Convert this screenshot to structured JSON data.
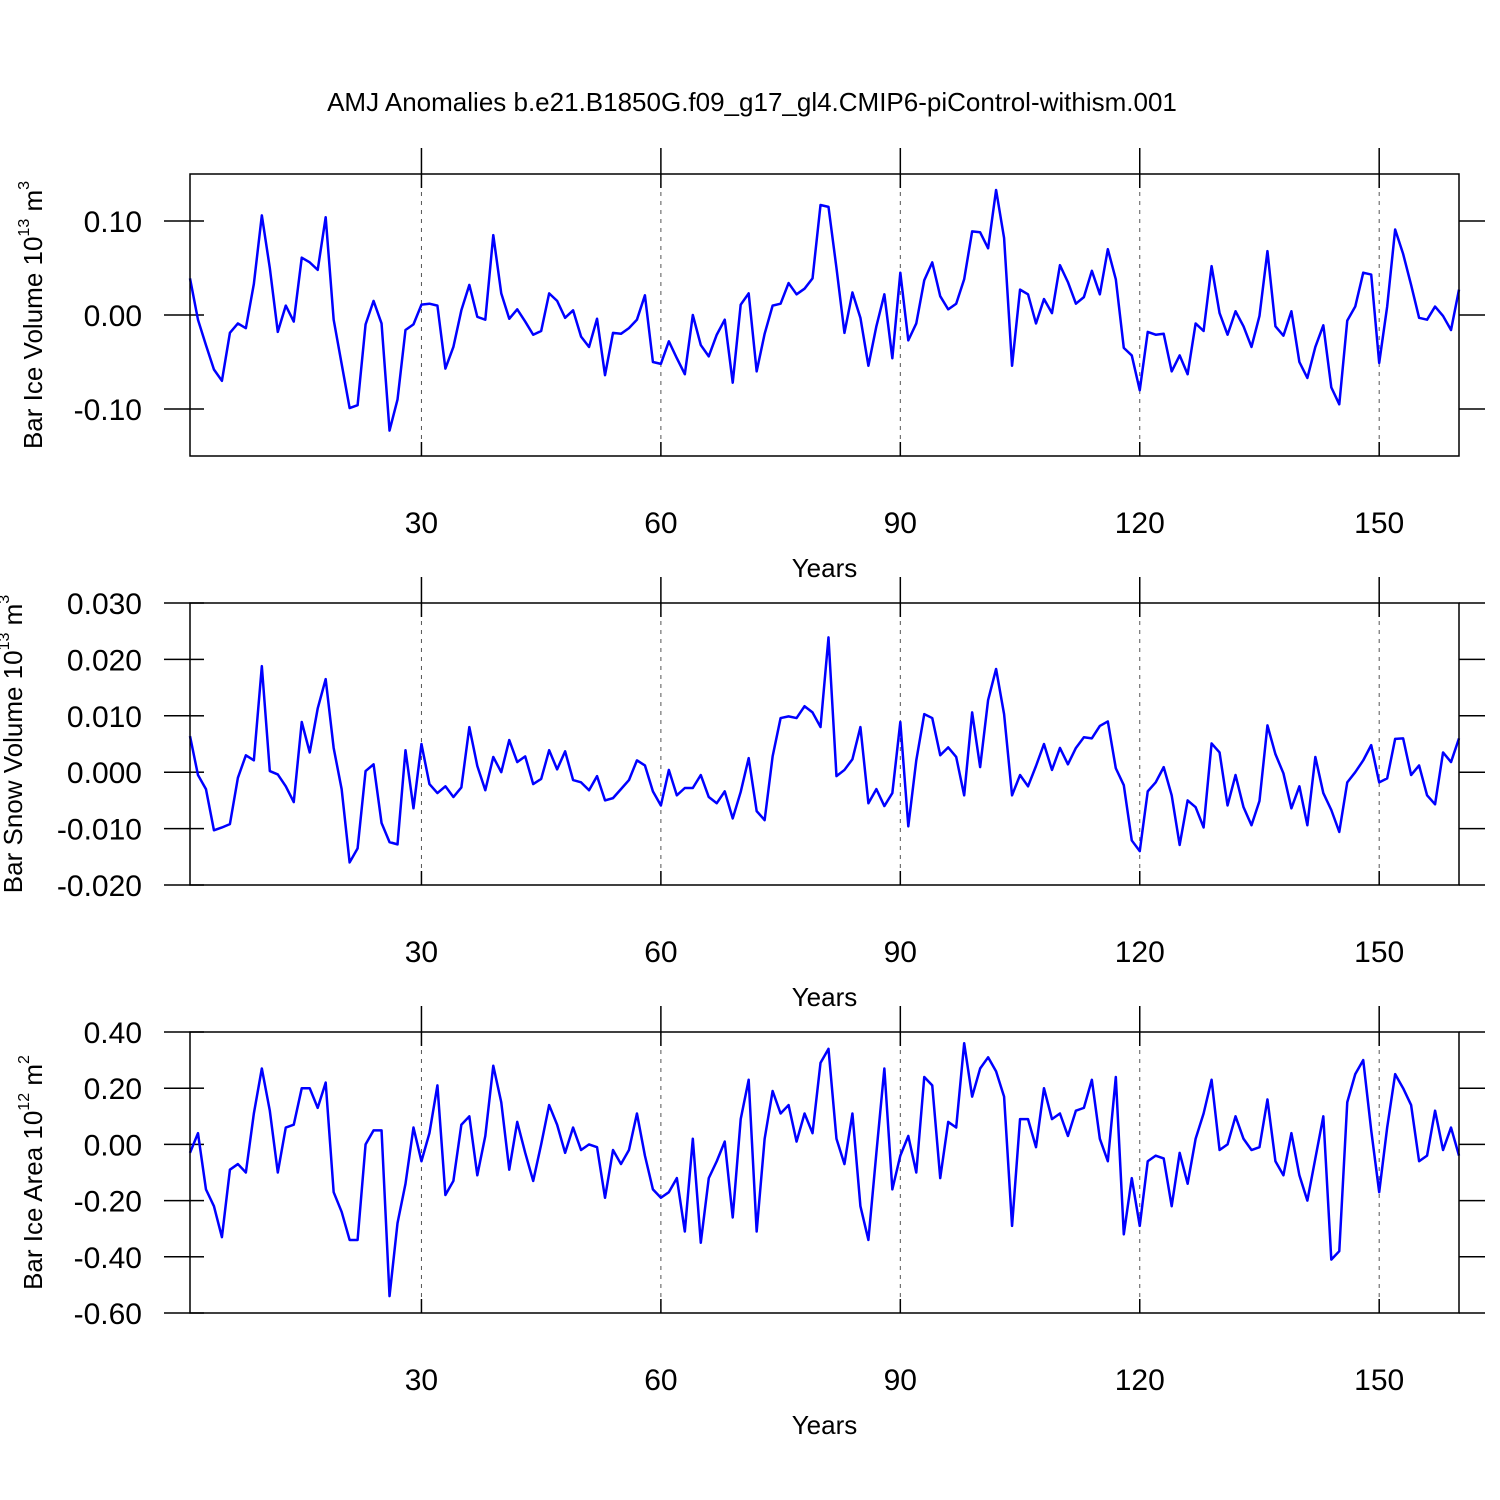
{
  "chart_data": [
    {
      "type": "line",
      "title": "AMJ Anomalies b.e21.B1850G.f09_g17_gl4.CMIP6-piControl-withism.001",
      "xlabel": "Years",
      "ylabel_parts": [
        "Bar Ice Volume 10",
        "13",
        " m",
        "3"
      ],
      "x": [
        1,
        2,
        3,
        4,
        5,
        6,
        7,
        8,
        9,
        10,
        11,
        12,
        13,
        14,
        15,
        16,
        17,
        18,
        19,
        20,
        21,
        22,
        23,
        24,
        25,
        26,
        27,
        28,
        29,
        30,
        31,
        32,
        33,
        34,
        35,
        36,
        37,
        38,
        39,
        40,
        41,
        42,
        43,
        44,
        45,
        46,
        47,
        48,
        49,
        50,
        51,
        52,
        53,
        54,
        55,
        56,
        57,
        58,
        59,
        60,
        61,
        62,
        63,
        64,
        65,
        66,
        67,
        68,
        69,
        70,
        71,
        72,
        73,
        74,
        75,
        76,
        77,
        78,
        79,
        80,
        81,
        82,
        83,
        84,
        85,
        86,
        87,
        88,
        89,
        90,
        91,
        92,
        93,
        94,
        95,
        96,
        97,
        98,
        99,
        100,
        101,
        102,
        103,
        104,
        105,
        106,
        107,
        108,
        109,
        110,
        111,
        112,
        113,
        114,
        115,
        116,
        117,
        118,
        119,
        120,
        121,
        122,
        123,
        124,
        125,
        126,
        127,
        128,
        129,
        130,
        131,
        132,
        133,
        134,
        135,
        136,
        137,
        138,
        139,
        140,
        141,
        142,
        143,
        144,
        145,
        146,
        147,
        148,
        149,
        150,
        151,
        152,
        153,
        154,
        155,
        156,
        157,
        158,
        159,
        160
      ],
      "values": [
        0.039,
        -0.005,
        -0.032,
        -0.058,
        -0.07,
        -0.019,
        -0.009,
        -0.014,
        0.033,
        0.106,
        0.05,
        -0.018,
        0.01,
        -0.007,
        0.061,
        0.056,
        0.048,
        0.104,
        -0.005,
        -0.052,
        -0.099,
        -0.096,
        -0.01,
        0.015,
        -0.009,
        -0.123,
        -0.09,
        -0.016,
        -0.01,
        0.011,
        0.012,
        0.01,
        -0.057,
        -0.034,
        0.005,
        0.032,
        -0.002,
        -0.005,
        0.085,
        0.023,
        -0.004,
        0.006,
        -0.007,
        -0.021,
        -0.017,
        0.023,
        0.015,
        -0.003,
        0.005,
        -0.023,
        -0.034,
        -0.004,
        -0.064,
        -0.019,
        -0.02,
        -0.014,
        -0.005,
        0.021,
        -0.05,
        -0.052,
        -0.028,
        -0.046,
        -0.063,
        0.0,
        -0.032,
        -0.044,
        -0.021,
        -0.005,
        -0.072,
        0.011,
        0.023,
        -0.06,
        -0.02,
        0.01,
        0.012,
        0.034,
        0.022,
        0.028,
        0.039,
        0.117,
        0.115,
        0.05,
        -0.019,
        0.024,
        -0.003,
        -0.054,
        -0.012,
        0.022,
        -0.046,
        0.045,
        -0.027,
        -0.009,
        0.037,
        0.056,
        0.02,
        0.006,
        0.012,
        0.038,
        0.089,
        0.088,
        0.071,
        0.133,
        0.082,
        -0.054,
        0.027,
        0.022,
        -0.009,
        0.017,
        0.002,
        0.053,
        0.035,
        0.012,
        0.019,
        0.047,
        0.022,
        0.07,
        0.038,
        -0.035,
        -0.043,
        -0.08,
        -0.018,
        -0.021,
        -0.02,
        -0.06,
        -0.043,
        -0.063,
        -0.009,
        -0.017,
        0.052,
        0.002,
        -0.021,
        0.004,
        -0.012,
        -0.034,
        -0.001,
        0.068,
        -0.012,
        -0.022,
        0.004,
        -0.05,
        -0.067,
        -0.034,
        -0.011,
        -0.077,
        -0.095,
        -0.006,
        0.009,
        0.045,
        0.043,
        -0.051,
        0.009,
        0.091,
        0.065,
        0.032,
        -0.003,
        -0.005,
        0.009,
        -0.001,
        -0.016,
        0.027
      ],
      "color": "#0000ff",
      "xlim": [
        1,
        160
      ],
      "ylim": [
        -0.15,
        0.15
      ],
      "xticks": [
        30,
        60,
        90,
        120,
        150
      ],
      "yticks": [
        {
          "value": -0.1,
          "label": "-0.10"
        },
        {
          "value": 0,
          "label": "0.00"
        },
        {
          "value": 0.1,
          "label": "0.10"
        }
      ],
      "xgrid": true
    },
    {
      "type": "line",
      "xlabel": "Years",
      "ylabel_parts": [
        "Bar Snow Volume 10",
        "13",
        " m",
        "3"
      ],
      "x": [
        1,
        2,
        3,
        4,
        5,
        6,
        7,
        8,
        9,
        10,
        11,
        12,
        13,
        14,
        15,
        16,
        17,
        18,
        19,
        20,
        21,
        22,
        23,
        24,
        25,
        26,
        27,
        28,
        29,
        30,
        31,
        32,
        33,
        34,
        35,
        36,
        37,
        38,
        39,
        40,
        41,
        42,
        43,
        44,
        45,
        46,
        47,
        48,
        49,
        50,
        51,
        52,
        53,
        54,
        55,
        56,
        57,
        58,
        59,
        60,
        61,
        62,
        63,
        64,
        65,
        66,
        67,
        68,
        69,
        70,
        71,
        72,
        73,
        74,
        75,
        76,
        77,
        78,
        79,
        80,
        81,
        82,
        83,
        84,
        85,
        86,
        87,
        88,
        89,
        90,
        91,
        92,
        93,
        94,
        95,
        96,
        97,
        98,
        99,
        100,
        101,
        102,
        103,
        104,
        105,
        106,
        107,
        108,
        109,
        110,
        111,
        112,
        113,
        114,
        115,
        116,
        117,
        118,
        119,
        120,
        121,
        122,
        123,
        124,
        125,
        126,
        127,
        128,
        129,
        130,
        131,
        132,
        133,
        134,
        135,
        136,
        137,
        138,
        139,
        140,
        141,
        142,
        143,
        144,
        145,
        146,
        147,
        148,
        149,
        150,
        151,
        152,
        153,
        154,
        155,
        156,
        157,
        158,
        159,
        160
      ],
      "values": [
        0.0064,
        -0.0005,
        -0.003,
        -0.0103,
        -0.0098,
        -0.0092,
        -0.001,
        0.003,
        0.0021,
        0.0188,
        0.0002,
        -0.0004,
        -0.0025,
        -0.0053,
        0.0089,
        0.0035,
        0.0113,
        0.0165,
        0.0043,
        -0.003,
        -0.016,
        -0.0135,
        0.0002,
        0.0014,
        -0.009,
        -0.0124,
        -0.0128,
        0.0039,
        -0.0064,
        0.005,
        -0.0021,
        -0.0037,
        -0.0025,
        -0.0044,
        -0.0027,
        0.008,
        0.0011,
        -0.0032,
        0.0027,
        0.0,
        0.0057,
        0.0018,
        0.0028,
        -0.0021,
        -0.0012,
        0.0039,
        0.0005,
        0.0037,
        -0.0014,
        -0.0018,
        -0.0032,
        -0.0007,
        -0.005,
        -0.0046,
        -0.003,
        -0.0014,
        0.0021,
        0.0012,
        -0.0034,
        -0.0059,
        0.0004,
        -0.0041,
        -0.0028,
        -0.0028,
        -0.0005,
        -0.0044,
        -0.0055,
        -0.0034,
        -0.0082,
        -0.0035,
        0.0025,
        -0.0069,
        -0.0085,
        0.0028,
        0.0096,
        0.0099,
        0.0096,
        0.0117,
        0.0106,
        0.008,
        0.0239,
        -0.0007,
        0.0004,
        0.0023,
        0.008,
        -0.0055,
        -0.003,
        -0.006,
        -0.0037,
        0.0089,
        -0.0096,
        0.0021,
        0.0103,
        0.0096,
        0.003,
        0.0044,
        0.0027,
        -0.0041,
        0.0106,
        0.0009,
        0.0128,
        0.0183,
        0.0103,
        -0.0041,
        -0.0005,
        -0.0025,
        0.0011,
        0.005,
        0.0004,
        0.0043,
        0.0014,
        0.0043,
        0.0062,
        0.006,
        0.0082,
        0.009,
        0.0007,
        -0.0023,
        -0.0121,
        -0.014,
        -0.0034,
        -0.0018,
        0.0009,
        -0.0041,
        -0.0129,
        -0.005,
        -0.0062,
        -0.0098,
        0.0051,
        0.0035,
        -0.0059,
        -0.0005,
        -0.0062,
        -0.0094,
        -0.0051,
        0.0083,
        0.0032,
        -0.0002,
        -0.0064,
        -0.0025,
        -0.0094,
        0.0027,
        -0.0037,
        -0.0067,
        -0.0106,
        -0.0018,
        0.0,
        0.0021,
        0.0048,
        -0.0018,
        -0.0011,
        0.0059,
        0.006,
        -0.0005,
        0.0012,
        -0.0041,
        -0.0057,
        0.0035,
        0.0018,
        0.006
      ],
      "color": "#0000ff",
      "xlim": [
        1,
        160
      ],
      "ylim": [
        -0.02,
        0.03
      ],
      "xticks": [
        30,
        60,
        90,
        120,
        150
      ],
      "yticks": [
        {
          "value": -0.02,
          "label": "-0.020"
        },
        {
          "value": -0.01,
          "label": "-0.010"
        },
        {
          "value": 0,
          "label": "0.000"
        },
        {
          "value": 0.01,
          "label": "0.010"
        },
        {
          "value": 0.02,
          "label": "0.020"
        },
        {
          "value": 0.03,
          "label": "0.030"
        }
      ],
      "xgrid": true
    },
    {
      "type": "line",
      "xlabel": "Years",
      "ylabel_parts": [
        "Bar Ice Area 10",
        "12",
        " m",
        "2"
      ],
      "x": [
        1,
        2,
        3,
        4,
        5,
        6,
        7,
        8,
        9,
        10,
        11,
        12,
        13,
        14,
        15,
        16,
        17,
        18,
        19,
        20,
        21,
        22,
        23,
        24,
        25,
        26,
        27,
        28,
        29,
        30,
        31,
        32,
        33,
        34,
        35,
        36,
        37,
        38,
        39,
        40,
        41,
        42,
        43,
        44,
        45,
        46,
        47,
        48,
        49,
        50,
        51,
        52,
        53,
        54,
        55,
        56,
        57,
        58,
        59,
        60,
        61,
        62,
        63,
        64,
        65,
        66,
        67,
        68,
        69,
        70,
        71,
        72,
        73,
        74,
        75,
        76,
        77,
        78,
        79,
        80,
        81,
        82,
        83,
        84,
        85,
        86,
        87,
        88,
        89,
        90,
        91,
        92,
        93,
        94,
        95,
        96,
        97,
        98,
        99,
        100,
        101,
        102,
        103,
        104,
        105,
        106,
        107,
        108,
        109,
        110,
        111,
        112,
        113,
        114,
        115,
        116,
        117,
        118,
        119,
        120,
        121,
        122,
        123,
        124,
        125,
        126,
        127,
        128,
        129,
        130,
        131,
        132,
        133,
        134,
        135,
        136,
        137,
        138,
        139,
        140,
        141,
        142,
        143,
        144,
        145,
        146,
        147,
        148,
        149,
        150,
        151,
        152,
        153,
        154,
        155,
        156,
        157,
        158,
        159,
        160
      ],
      "values": [
        -0.03,
        0.04,
        -0.16,
        -0.22,
        -0.33,
        -0.09,
        -0.07,
        -0.1,
        0.11,
        0.27,
        0.12,
        -0.1,
        0.06,
        0.07,
        0.2,
        0.2,
        0.13,
        0.22,
        -0.17,
        -0.24,
        -0.34,
        -0.34,
        0.0,
        0.05,
        0.05,
        -0.54,
        -0.28,
        -0.14,
        0.06,
        -0.06,
        0.04,
        0.21,
        -0.18,
        -0.13,
        0.07,
        0.1,
        -0.11,
        0.03,
        0.28,
        0.15,
        -0.09,
        0.08,
        -0.03,
        -0.13,
        0.0,
        0.14,
        0.07,
        -0.03,
        0.06,
        -0.02,
        0.0,
        -0.01,
        -0.19,
        -0.02,
        -0.07,
        -0.02,
        0.11,
        -0.04,
        -0.16,
        -0.19,
        -0.17,
        -0.12,
        -0.31,
        0.02,
        -0.35,
        -0.12,
        -0.06,
        0.01,
        -0.26,
        0.09,
        0.23,
        -0.31,
        0.02,
        0.19,
        0.11,
        0.14,
        0.01,
        0.11,
        0.04,
        0.29,
        0.34,
        0.02,
        -0.07,
        0.11,
        -0.22,
        -0.34,
        -0.03,
        0.27,
        -0.16,
        -0.04,
        0.03,
        -0.1,
        0.24,
        0.21,
        -0.12,
        0.08,
        0.06,
        0.36,
        0.17,
        0.27,
        0.31,
        0.26,
        0.17,
        -0.29,
        0.09,
        0.09,
        -0.01,
        0.2,
        0.09,
        0.11,
        0.03,
        0.12,
        0.13,
        0.23,
        0.02,
        -0.06,
        0.24,
        -0.32,
        -0.12,
        -0.29,
        -0.06,
        -0.04,
        -0.05,
        -0.22,
        -0.03,
        -0.14,
        0.02,
        0.11,
        0.23,
        -0.02,
        0.0,
        0.1,
        0.02,
        -0.02,
        -0.01,
        0.16,
        -0.06,
        -0.11,
        0.04,
        -0.11,
        -0.2,
        -0.05,
        0.1,
        -0.41,
        -0.38,
        0.15,
        0.25,
        0.3,
        0.05,
        -0.17,
        0.06,
        0.25,
        0.2,
        0.14,
        -0.06,
        -0.04,
        0.12,
        -0.02,
        0.06,
        -0.04
      ],
      "color": "#0000ff",
      "xlim": [
        1,
        160
      ],
      "ylim": [
        -0.6,
        0.4
      ],
      "xticks": [
        30,
        60,
        90,
        120,
        150
      ],
      "yticks": [
        {
          "value": -0.6,
          "label": "-0.60"
        },
        {
          "value": -0.4,
          "label": "-0.40"
        },
        {
          "value": -0.2,
          "label": "-0.20"
        },
        {
          "value": 0,
          "label": "0.00"
        },
        {
          "value": 0.2,
          "label": "0.20"
        },
        {
          "value": 0.4,
          "label": "0.40"
        }
      ],
      "xgrid": true
    }
  ]
}
